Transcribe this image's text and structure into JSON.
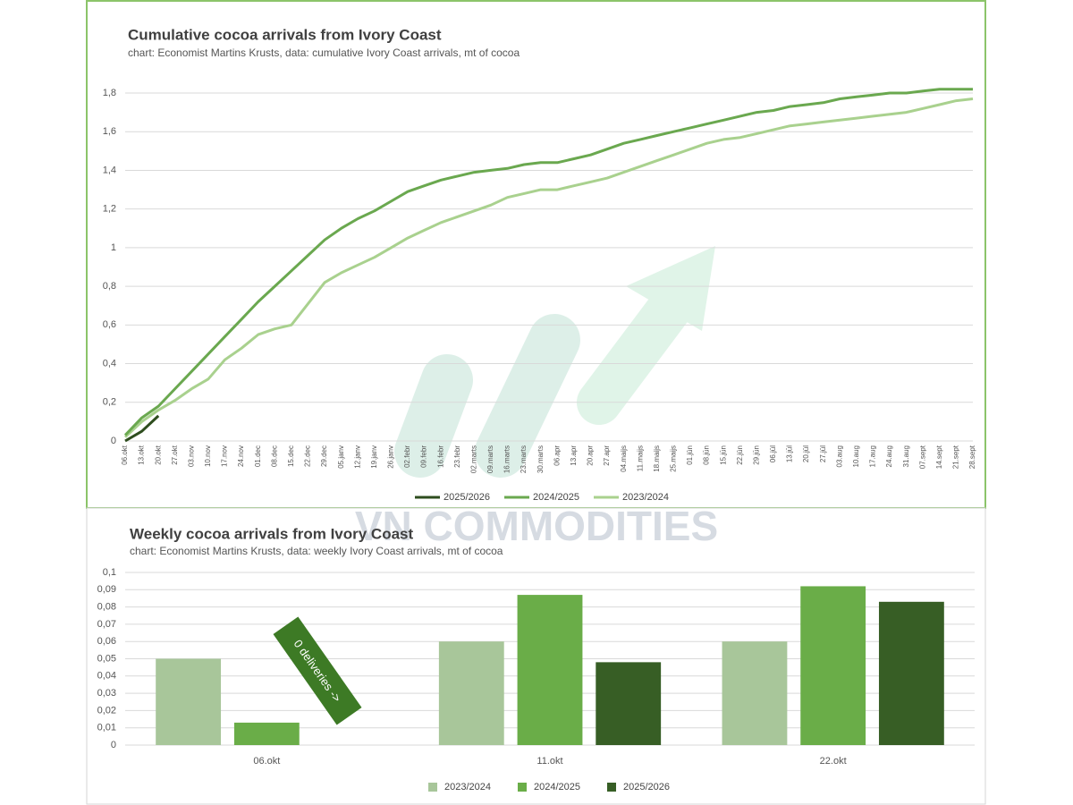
{
  "watermark": "VN COMMODITIES",
  "chart_data": [
    {
      "type": "line",
      "title": "Cumulative cocoa arrivals from Ivory Coast",
      "subtitle": "chart: Economist Martins Krusts, data: cumulative Ivory Coast arrivals, mt of cocoa",
      "categories": [
        "06.okt",
        "13.okt",
        "20.okt",
        "27.okt",
        "03.nov",
        "10.nov",
        "17.nov",
        "24.nov",
        "01.dec",
        "08.dec",
        "15.dec",
        "22.dec",
        "29.dec",
        "05.janv",
        "12.janv",
        "19.janv",
        "26.janv",
        "02.febr",
        "09.febr",
        "16.febr",
        "23.febr",
        "02.marts",
        "09.marts",
        "16.marts",
        "23.marts",
        "30.marts",
        "06.apr",
        "13.apr",
        "20.apr",
        "27.apr",
        "04.maijs",
        "11.maijs",
        "18.maijs",
        "25.maijs",
        "01.jūn",
        "08.jūn",
        "15.jūn",
        "22.jūn",
        "29.jūn",
        "06.jūl",
        "13.jūl",
        "20.jūl",
        "27.jūl",
        "03.aug",
        "10.aug",
        "17.aug",
        "24.aug",
        "31.aug",
        "07.sept",
        "14.sept",
        "21.sept",
        "28.sept"
      ],
      "series": [
        {
          "name": "2025/2026",
          "color": "#2e4d1e",
          "values": [
            0,
            0.05,
            0.13,
            null,
            null,
            null,
            null,
            null,
            null,
            null,
            null,
            null,
            null,
            null,
            null,
            null,
            null,
            null,
            null,
            null,
            null,
            null,
            null,
            null,
            null,
            null,
            null,
            null,
            null,
            null,
            null,
            null,
            null,
            null,
            null,
            null,
            null,
            null,
            null,
            null,
            null,
            null,
            null,
            null,
            null,
            null,
            null,
            null,
            null,
            null,
            null,
            null
          ]
        },
        {
          "name": "2024/2025",
          "color": "#6aa84f",
          "values": [
            0.03,
            0.12,
            0.18,
            0.27,
            0.36,
            0.45,
            0.54,
            0.63,
            0.72,
            0.8,
            0.88,
            0.96,
            1.04,
            1.1,
            1.15,
            1.19,
            1.24,
            1.29,
            1.32,
            1.35,
            1.37,
            1.39,
            1.4,
            1.41,
            1.43,
            1.44,
            1.44,
            1.46,
            1.48,
            1.51,
            1.54,
            1.56,
            1.58,
            1.6,
            1.62,
            1.64,
            1.66,
            1.68,
            1.7,
            1.71,
            1.73,
            1.74,
            1.75,
            1.77,
            1.78,
            1.79,
            1.8,
            1.8,
            1.81,
            1.82,
            1.82,
            1.82
          ]
        },
        {
          "name": "2023/2024",
          "color": "#a9d18e",
          "values": [
            0.02,
            0.1,
            0.16,
            0.21,
            0.27,
            0.32,
            0.42,
            0.48,
            0.55,
            0.58,
            0.6,
            0.71,
            0.82,
            0.87,
            0.91,
            0.95,
            1.0,
            1.05,
            1.09,
            1.13,
            1.16,
            1.19,
            1.22,
            1.26,
            1.28,
            1.3,
            1.3,
            1.32,
            1.34,
            1.36,
            1.39,
            1.42,
            1.45,
            1.48,
            1.51,
            1.54,
            1.56,
            1.57,
            1.59,
            1.61,
            1.63,
            1.64,
            1.65,
            1.66,
            1.67,
            1.68,
            1.69,
            1.7,
            1.72,
            1.74,
            1.76,
            1.77
          ]
        }
      ],
      "ylim": [
        0,
        1.8
      ],
      "yticks": [
        0,
        {
          "value": 0.2,
          "label": "0,2"
        },
        {
          "value": 0.4,
          "label": "0,4"
        },
        {
          "value": 0.6,
          "label": "0,6"
        },
        {
          "value": 0.8,
          "label": "0,8"
        },
        1,
        {
          "value": 1.2,
          "label": "1,2"
        },
        {
          "value": 1.4,
          "label": "1,4"
        },
        {
          "value": 1.6,
          "label": "1,6"
        },
        {
          "value": 1.8,
          "label": "1,8"
        }
      ],
      "grid": true,
      "legend": "bottom"
    },
    {
      "type": "bar",
      "title": "Weekly cocoa arrivals from Ivory Coast",
      "subtitle": "chart: Economist Martins Krusts, data: weekly Ivory Coast arrivals, mt of cocoa",
      "categories": [
        "06.okt",
        "11.okt",
        "22.okt"
      ],
      "series": [
        {
          "name": "2023/2024",
          "color": "#a8c69a",
          "values": [
            0.05,
            0.06,
            0.06
          ]
        },
        {
          "name": "2024/2025",
          "color": "#6aad48",
          "values": [
            0.013,
            0.087,
            0.092
          ]
        },
        {
          "name": "2025/2026",
          "color": "#375e25",
          "values": [
            0,
            0.048,
            0.083
          ]
        }
      ],
      "ylim": [
        0,
        0.1
      ],
      "yticks": [
        0,
        {
          "value": 0.01,
          "label": "0,01"
        },
        {
          "value": 0.02,
          "label": "0,02"
        },
        {
          "value": 0.03,
          "label": "0,03"
        },
        {
          "value": 0.04,
          "label": "0,04"
        },
        {
          "value": 0.05,
          "label": "0,05"
        },
        {
          "value": 0.06,
          "label": "0,06"
        },
        {
          "value": 0.07,
          "label": "0,07"
        },
        {
          "value": 0.08,
          "label": "0,08"
        },
        {
          "value": 0.09,
          "label": "0,09"
        },
        {
          "value": 0.1,
          "label": "0,1"
        }
      ],
      "annotation": "0 deliveries ->",
      "grid": true,
      "legend": "bottom"
    }
  ]
}
